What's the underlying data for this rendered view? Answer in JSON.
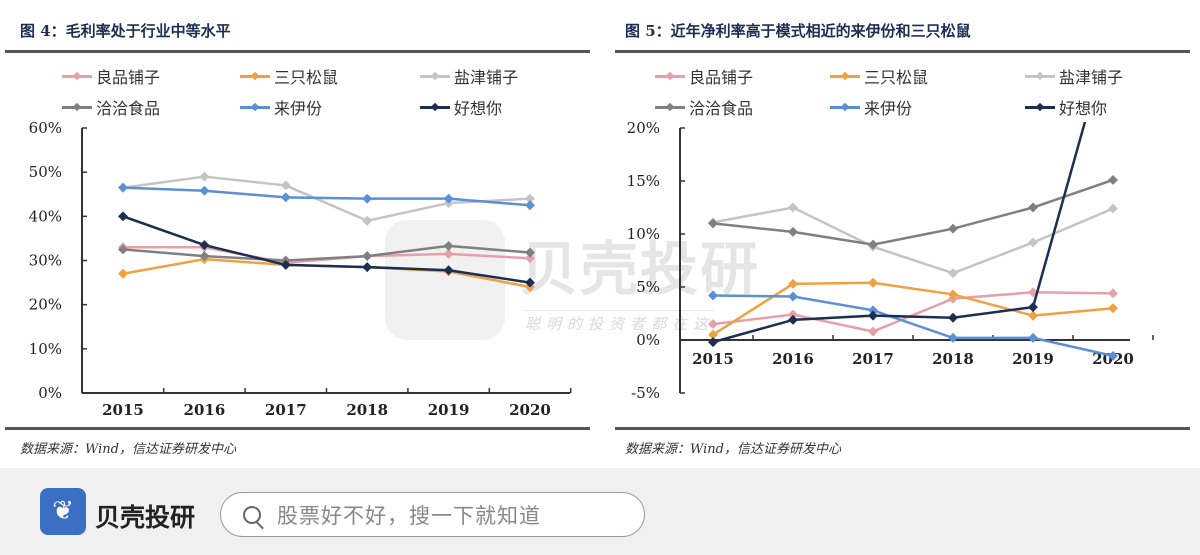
{
  "chart_data": [
    {
      "type": "line",
      "title": "图 4：毛利率处于行业中等水平",
      "categories": [
        "2015",
        "2016",
        "2017",
        "2018",
        "2019",
        "2020"
      ],
      "ylim": [
        0,
        60
      ],
      "yticks": [
        "0%",
        "10%",
        "20%",
        "30%",
        "40%",
        "50%",
        "60%"
      ],
      "ytick_values": [
        0,
        10,
        20,
        30,
        40,
        50,
        60
      ],
      "legend": "top",
      "series": [
        {
          "name": "良品铺子",
          "color": "#e8a0a8",
          "values": [
            33,
            33,
            29.5,
            31,
            31.5,
            30.5
          ]
        },
        {
          "name": "三只松鼠",
          "color": "#f0a040",
          "values": [
            27,
            30.3,
            29,
            28.5,
            27.5,
            24
          ]
        },
        {
          "name": "盐津铺子",
          "color": "#c4c4c4",
          "values": [
            46.5,
            49,
            47,
            39,
            43,
            44
          ]
        },
        {
          "name": "洽洽食品",
          "color": "#808080",
          "values": [
            32.5,
            31,
            30,
            31,
            33.3,
            31.8
          ]
        },
        {
          "name": "来伊份",
          "color": "#5b8fd6",
          "values": [
            46.5,
            45.8,
            44.3,
            44,
            44,
            42.5
          ]
        },
        {
          "name": "好想你",
          "color": "#1c2e52",
          "values": [
            40,
            33.5,
            29,
            28.5,
            27.8,
            25
          ]
        }
      ],
      "source": "数据来源：Wind，信达证券研发中心"
    },
    {
      "type": "line",
      "title": "图 5：近年净利率高于模式相近的来伊份和三只松鼠",
      "categories": [
        "2015",
        "2016",
        "2017",
        "2018",
        "2019",
        "2020"
      ],
      "ylim": [
        -5,
        20
      ],
      "yticks": [
        "-5%",
        "0%",
        "5%",
        "10%",
        "15%",
        "20%"
      ],
      "ytick_values": [
        -5,
        0,
        5,
        10,
        15,
        20
      ],
      "legend": "top",
      "series": [
        {
          "name": "良品铺子",
          "color": "#e8a0a8",
          "values": [
            1.5,
            2.4,
            0.8,
            3.9,
            4.5,
            4.4
          ]
        },
        {
          "name": "三只松鼠",
          "color": "#f0a040",
          "values": [
            0.5,
            5.3,
            5.4,
            4.3,
            2.3,
            3.0
          ]
        },
        {
          "name": "盐津铺子",
          "color": "#c4c4c4",
          "values": [
            11.1,
            12.5,
            8.8,
            6.3,
            9.2,
            12.4
          ]
        },
        {
          "name": "洽洽食品",
          "color": "#808080",
          "values": [
            11.0,
            10.2,
            9.0,
            10.5,
            12.5,
            15.1
          ]
        },
        {
          "name": "来伊份",
          "color": "#5b8fd6",
          "values": [
            4.2,
            4.1,
            2.8,
            0.2,
            0.2,
            -1.5
          ]
        },
        {
          "name": "好想你",
          "color": "#1c2e52",
          "values": [
            -0.2,
            1.9,
            2.3,
            2.1,
            3.1,
            30
          ]
        }
      ],
      "source": "数据来源：Wind，信达证券研发中心"
    }
  ],
  "watermark": {
    "text": "贝壳投研",
    "subtext": "聪明的投资者都在这"
  },
  "footer": {
    "brand": "贝壳投研",
    "search_placeholder": "股票好不好，搜一下就知道",
    "logo_icon": "shell-fan-icon",
    "brand_color": "#3a6fc4"
  }
}
